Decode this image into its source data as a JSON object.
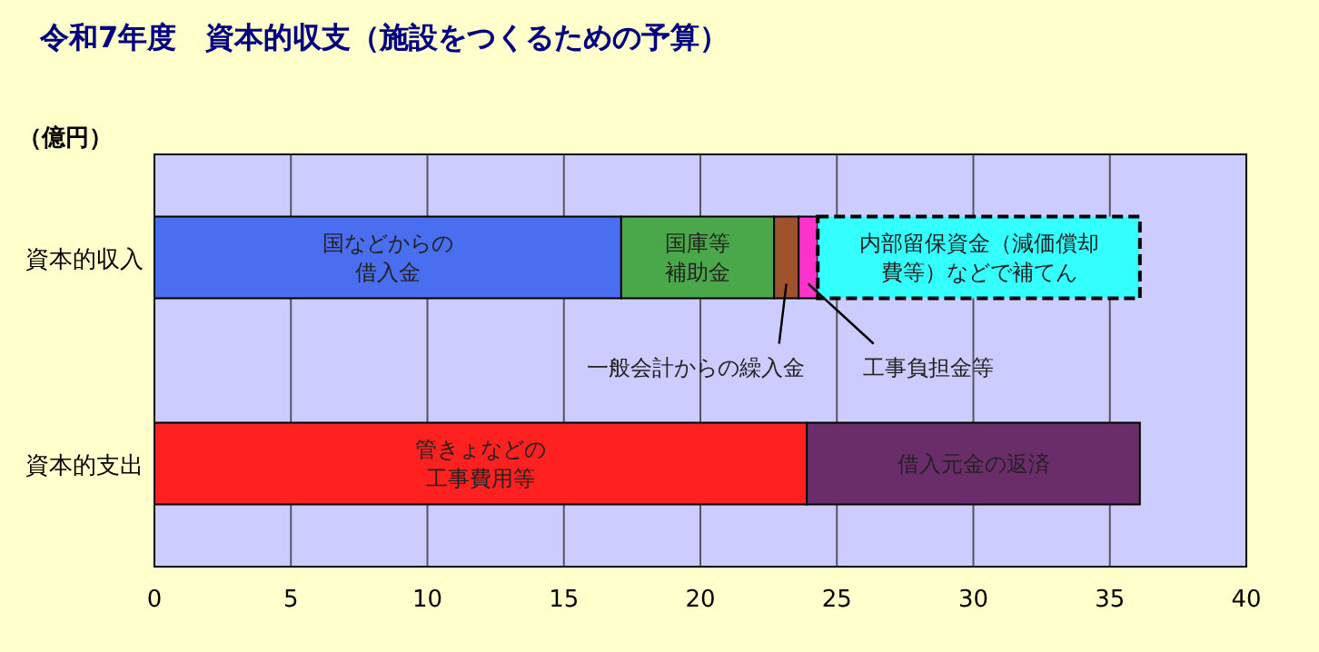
{
  "chart_data": {
    "type": "bar",
    "orientation": "horizontal",
    "stacked": true,
    "title": "令和7年度　資本的収支（施設をつくるための予算）",
    "xlabel": "（億円）",
    "categories": [
      "資本的収入",
      "資本的支出"
    ],
    "series": [
      {
        "name": "国などからの借入金",
        "color": "#4a6ef0",
        "values": [
          17.1,
          null
        ]
      },
      {
        "name": "国庫等補助金",
        "color": "#4aa84a",
        "values": [
          5.6,
          null
        ]
      },
      {
        "name": "一般会計からの繰入金",
        "color": "#a0522d",
        "values": [
          0.9,
          null
        ]
      },
      {
        "name": "工事負担金等",
        "color": "#ff33cc",
        "values": [
          0.7,
          null
        ]
      },
      {
        "name": "内部留保資金（減価償却費等）などで補てん",
        "color": "#33ffff",
        "line_style": "dashed",
        "values": [
          11.8,
          null
        ]
      },
      {
        "name": "管きょなどの工事費用等",
        "color": "#ff2020",
        "values": [
          null,
          23.9
        ]
      },
      {
        "name": "借入元金の返済",
        "color": "#6a2d6a",
        "values": [
          null,
          12.2
        ]
      }
    ],
    "xlim": [
      0,
      40
    ],
    "xticks": [
      0,
      5,
      10,
      15,
      20,
      25,
      30,
      35,
      40
    ],
    "grid": "x"
  }
}
